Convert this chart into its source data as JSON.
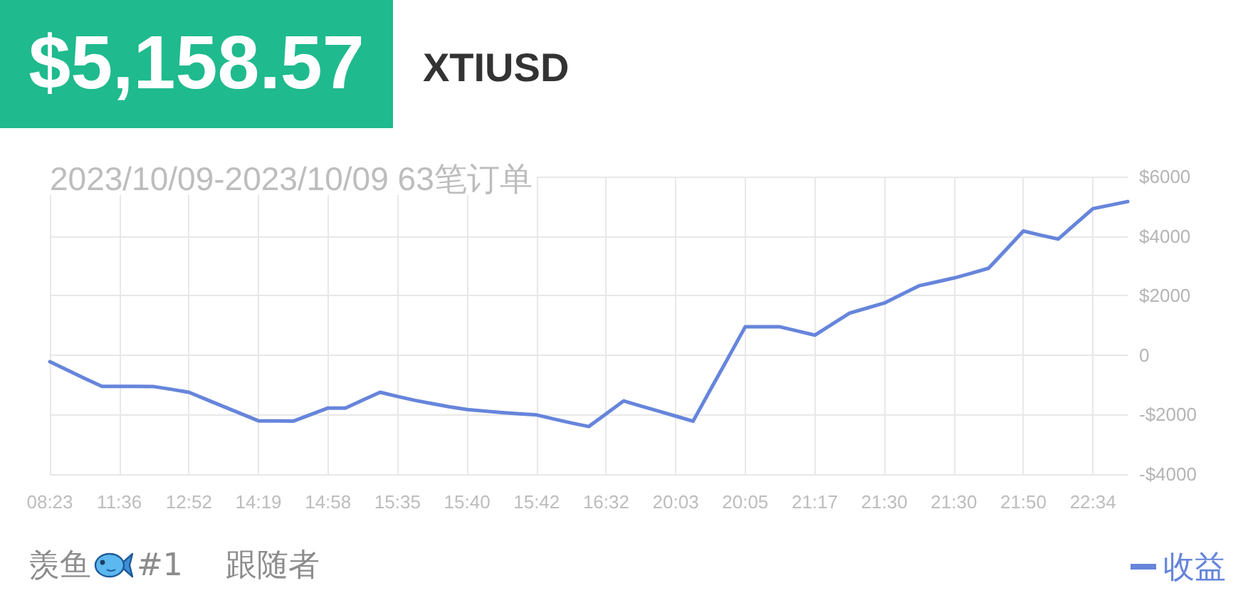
{
  "chart_data": {
    "type": "line",
    "title": "$5,158.57",
    "subtitle": "XTIUSD",
    "annotations": [
      "2023/10/09-2023/10/09 63笔订单",
      "羡鱼",
      "#1",
      "跟随者"
    ],
    "categories": [
      "08:23",
      null,
      null,
      null,
      "11:36",
      null,
      null,
      null,
      "12:52",
      null,
      null,
      null,
      "14:19",
      null,
      null,
      null,
      "14:58",
      null,
      null,
      null,
      "15:35",
      null,
      null,
      null,
      "15:40",
      null,
      null,
      null,
      "15:42",
      null,
      null,
      null,
      "16:32",
      null,
      null,
      null,
      "20:03",
      null,
      null,
      null,
      "20:05",
      null,
      null,
      null,
      "21:17",
      null,
      null,
      null,
      "21:30",
      null,
      null,
      null,
      "21:30",
      null,
      null,
      null,
      "21:50",
      null,
      null,
      null,
      "22:34",
      null,
      null
    ],
    "series": [
      {
        "name": "收益",
        "color": "#6685db",
        "values": [
          -220,
          -500,
          -780,
          -1050,
          -1050,
          -1050,
          -1060,
          -1150,
          -1250,
          -1490,
          -1730,
          -1970,
          -2210,
          -2210,
          -2220,
          -2000,
          -1780,
          -1780,
          -1510,
          -1250,
          -1390,
          -1520,
          -1630,
          -1740,
          -1830,
          -1880,
          -1930,
          -1970,
          -2010,
          -2150,
          -2280,
          -2400,
          -1970,
          -1540,
          -1710,
          -1880,
          -2050,
          -2220,
          -1160,
          -110,
          950,
          950,
          950,
          810,
          670,
          1040,
          1410,
          1580,
          1750,
          2040,
          2330,
          2460,
          2590,
          2750,
          2920,
          3540,
          4170,
          4030,
          3900,
          4410,
          4920,
          5040,
          5160
        ]
      }
    ],
    "ylim": [
      -4000,
      6000
    ],
    "yticks": [
      {
        "value": -4000,
        "label": "-$4000"
      },
      {
        "value": -2000,
        "label": "-$2000"
      },
      0,
      {
        "value": 2000,
        "label": "$2000"
      },
      {
        "value": 4000,
        "label": "$4000"
      },
      {
        "value": 6000,
        "label": "$6000"
      }
    ],
    "grid": true,
    "legend": "bottom right",
    "marker": "none"
  }
}
